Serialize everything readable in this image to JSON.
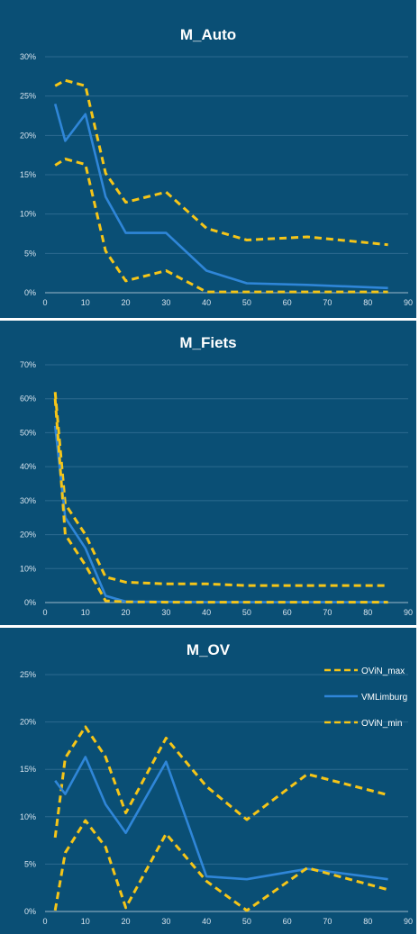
{
  "chart_data": [
    {
      "type": "line",
      "title": "M_Auto",
      "x": [
        2.5,
        5,
        10,
        15,
        20,
        30,
        40,
        50,
        65,
        85
      ],
      "xlim": [
        0,
        90
      ],
      "xticks": [
        "0",
        "10",
        "20",
        "30",
        "40",
        "50",
        "60",
        "70",
        "80",
        "90"
      ],
      "ylim": [
        0,
        30
      ],
      "yticks": [
        "0%",
        "5%",
        "10%",
        "15%",
        "20%",
        "25%",
        "30%"
      ],
      "grid": true,
      "series": [
        {
          "name": "OViN_max",
          "style": "dashed",
          "color": "#f5c518",
          "values": [
            26.3,
            27.0,
            26.3,
            15.2,
            11.5,
            12.8,
            8.2,
            6.7,
            7.1,
            6.1
          ]
        },
        {
          "name": "VMLimburg",
          "style": "solid",
          "color": "#2f86d8",
          "values": [
            24.0,
            19.3,
            22.7,
            12.2,
            7.6,
            7.6,
            2.8,
            1.2,
            1.0,
            0.6
          ]
        },
        {
          "name": "OViN_min",
          "style": "dashed",
          "color": "#f5c518",
          "values": [
            16.2,
            17.0,
            16.3,
            5.3,
            1.5,
            2.8,
            0.1,
            0.1,
            0.1,
            0.1
          ]
        }
      ]
    },
    {
      "type": "line",
      "title": "M_Fiets",
      "x": [
        2.5,
        5,
        10,
        15,
        20,
        30,
        40,
        50,
        65,
        85
      ],
      "xlim": [
        0,
        90
      ],
      "xticks": [
        "0",
        "10",
        "20",
        "30",
        "40",
        "50",
        "60",
        "70",
        "80",
        "90"
      ],
      "ylim": [
        0,
        70
      ],
      "yticks": [
        "0%",
        "10%",
        "20%",
        "30%",
        "40%",
        "50%",
        "60%",
        "70%"
      ],
      "grid": true,
      "series": [
        {
          "name": "OViN_max",
          "style": "dashed",
          "color": "#f5c518",
          "values": [
            62.0,
            29.0,
            20.0,
            7.5,
            6.0,
            5.5,
            5.5,
            5.0,
            5.0,
            5.0
          ]
        },
        {
          "name": "VMLimburg",
          "style": "solid",
          "color": "#2f86d8",
          "values": [
            52.0,
            25.0,
            16.0,
            2.0,
            0.3,
            0.2,
            0.1,
            0.1,
            0.1,
            0.1
          ]
        },
        {
          "name": "OViN_min",
          "style": "dashed",
          "color": "#f5c518",
          "values": [
            60.0,
            20.0,
            11.0,
            0.5,
            0.2,
            0.1,
            0.1,
            0.1,
            0.1,
            0.1
          ]
        }
      ]
    },
    {
      "type": "line",
      "title": "M_OV",
      "x": [
        2.5,
        5,
        10,
        15,
        20,
        30,
        40,
        50,
        65,
        85
      ],
      "xlim": [
        0,
        90
      ],
      "xticks": [
        "0",
        "10",
        "20",
        "30",
        "40",
        "50",
        "60",
        "70",
        "80",
        "90"
      ],
      "ylim": [
        0,
        25
      ],
      "yticks": [
        "0%",
        "5%",
        "10%",
        "15%",
        "20%",
        "25%"
      ],
      "grid": true,
      "legend": "top-right",
      "series": [
        {
          "name": "OViN_max",
          "style": "dashed",
          "color": "#f5c518",
          "values": [
            7.8,
            16.2,
            19.5,
            16.3,
            10.4,
            18.3,
            13.2,
            9.7,
            14.5,
            12.3
          ]
        },
        {
          "name": "VMLimburg",
          "style": "solid",
          "color": "#2f86d8",
          "values": [
            13.8,
            12.4,
            16.3,
            11.3,
            8.3,
            15.8,
            3.7,
            3.4,
            4.5,
            3.4
          ]
        },
        {
          "name": "OViN_min",
          "style": "dashed",
          "color": "#f5c518",
          "values": [
            0.1,
            6.2,
            9.6,
            6.8,
            0.4,
            8.2,
            3.2,
            0.1,
            4.6,
            2.3
          ]
        }
      ]
    }
  ]
}
